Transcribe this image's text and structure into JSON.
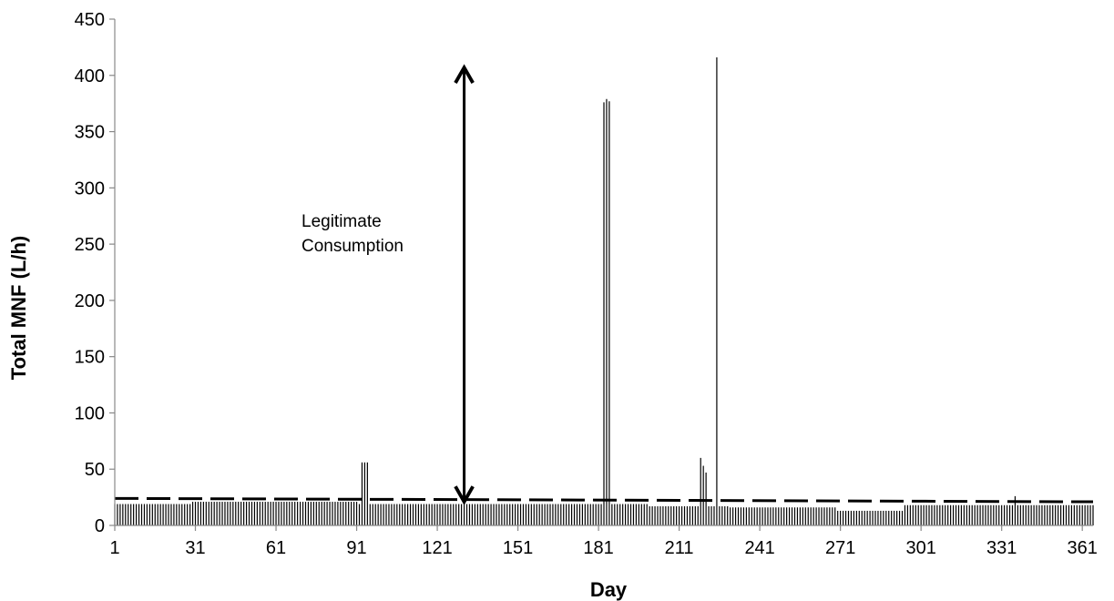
{
  "chart_data": {
    "type": "bar",
    "xlabel": "Day",
    "ylabel": "Total MNF (L/h)",
    "ylim": [
      0,
      450
    ],
    "xlim": [
      1,
      365
    ],
    "y_ticks": [
      0,
      50,
      100,
      150,
      200,
      250,
      300,
      350,
      400,
      450
    ],
    "x_ticks": [
      1,
      31,
      61,
      91,
      121,
      151,
      181,
      211,
      241,
      271,
      301,
      331,
      361
    ],
    "grid": false,
    "legend": "none",
    "series": [
      {
        "baseline_segments": [
          {
            "from_day": 1,
            "to_day": 30,
            "value": 19
          },
          {
            "from_day": 30,
            "to_day": 92,
            "value": 21
          },
          {
            "from_day": 92,
            "to_day": 120,
            "value": 19
          },
          {
            "from_day": 120,
            "to_day": 200,
            "value": 19
          },
          {
            "from_day": 200,
            "to_day": 230,
            "value": 17
          },
          {
            "from_day": 230,
            "to_day": 270,
            "value": 16
          },
          {
            "from_day": 270,
            "to_day": 295,
            "value": 13
          },
          {
            "from_day": 295,
            "to_day": 365,
            "value": 18
          }
        ],
        "spikes": [
          {
            "day": 93,
            "value": 56
          },
          {
            "day": 94,
            "value": 56
          },
          {
            "day": 95,
            "value": 56
          },
          {
            "day": 183,
            "value": 376
          },
          {
            "day": 184,
            "value": 379
          },
          {
            "day": 185,
            "value": 377
          },
          {
            "day": 219,
            "value": 60
          },
          {
            "day": 220,
            "value": 53
          },
          {
            "day": 221,
            "value": 47
          },
          {
            "day": 225,
            "value": 416
          },
          {
            "day": 336,
            "value": 26
          }
        ]
      }
    ],
    "threshold_line": {
      "style": "dashed",
      "from": [
        1,
        24
      ],
      "to": [
        365,
        21
      ]
    },
    "annotation": {
      "lines": [
        "Legitimate",
        "Consumption"
      ],
      "arrow_day": 131,
      "arrow_from": 23,
      "arrow_to": 405
    },
    "colors": {
      "bars": "#000000",
      "dashed_line": "#000000",
      "arrow": "#000000"
    }
  }
}
